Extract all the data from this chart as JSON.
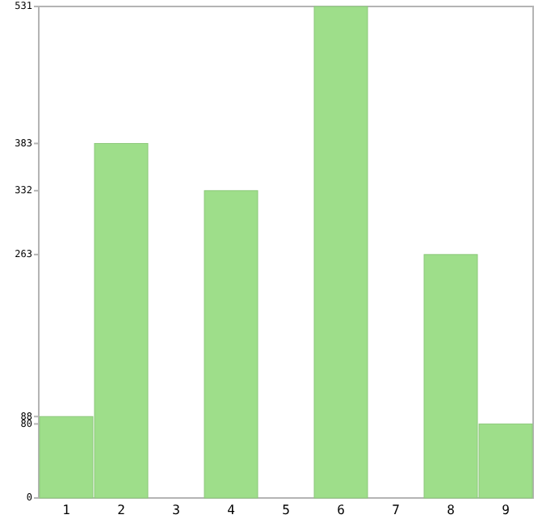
{
  "chart_data": {
    "type": "bar",
    "categories": [
      "1",
      "2",
      "3",
      "4",
      "5",
      "6",
      "7",
      "8",
      "9"
    ],
    "values": [
      88,
      383,
      0,
      332,
      0,
      531,
      0,
      263,
      80
    ],
    "color": "#9ede8a",
    "ylim": [
      0,
      531
    ],
    "yticks": [
      0,
      80,
      88,
      263,
      332,
      383,
      531
    ],
    "grid": false
  }
}
